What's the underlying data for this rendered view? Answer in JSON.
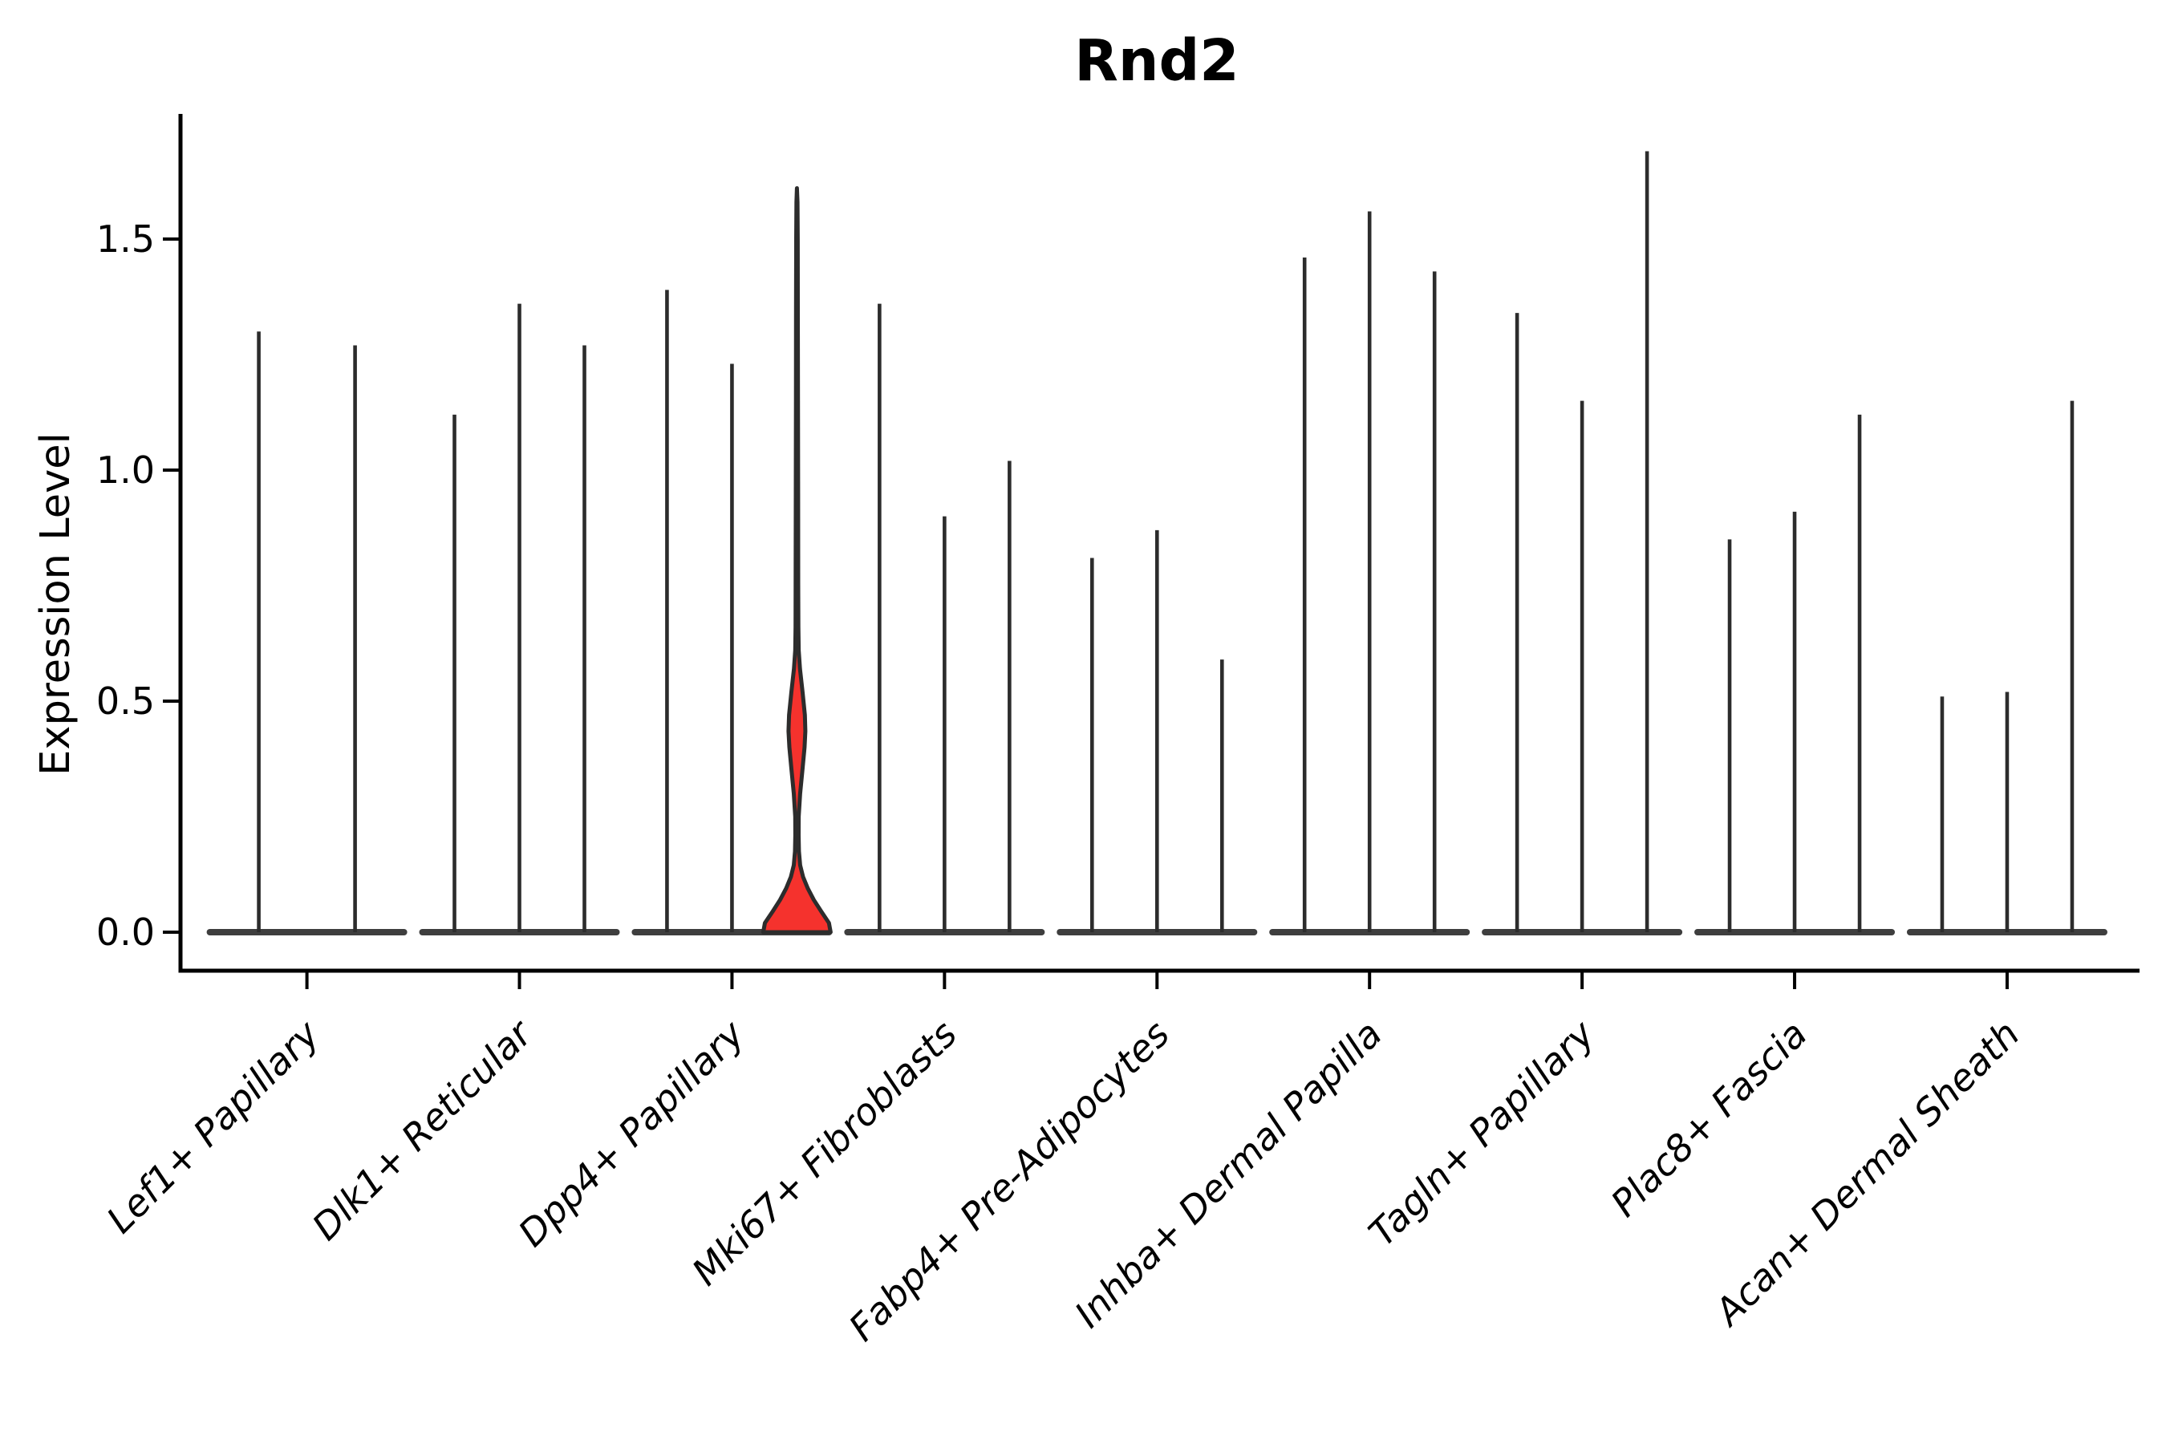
{
  "title": "Rnd2",
  "y_axis": {
    "label": "Expression Level",
    "tick_labels": [
      "0.0",
      "0.5",
      "1.0",
      "1.5"
    ]
  },
  "chart_data": {
    "type": "violin",
    "title": "Rnd2",
    "xlabel": "",
    "ylabel": "Expression Level",
    "ylim": [
      -0.085,
      1.77
    ],
    "yticks": [
      0.0,
      0.5,
      1.0,
      1.5
    ],
    "ytick_labels": [
      "0.0",
      "0.5",
      "1.0",
      "1.5"
    ],
    "grid": false,
    "legend": "none",
    "x_tick_rotation": 45,
    "categories": [
      "Lef1+ Papillary",
      "Dlk1+ Reticular",
      "Dpp4+ Papillary",
      "Mki67+ Fibroblasts",
      "Fabp4+ Pre-Adipocytes",
      "Inhba+ Dermal Papilla",
      "Tagln+ Papillary",
      "Plac8+ Fascia",
      "Acan+ Dermal Sheath"
    ],
    "description": "Violin plot of Rnd2 expression per fibroblast subtype; each category holds 2-3 narrow spike-like violins whose bases flatten at 0. The third violin of Dpp4+ Papillary is highlighted red with density bulges near 0 and ~0.44.",
    "groups": [
      {
        "category": "Lef1+ Papillary",
        "violins": [
          {
            "offset": -60,
            "max": 1.3
          },
          {
            "offset": 60,
            "max": 1.27
          }
        ]
      },
      {
        "category": "Dlk1+ Reticular",
        "violins": [
          {
            "offset": -81,
            "max": 1.12
          },
          {
            "offset": 0,
            "max": 1.36
          },
          {
            "offset": 81,
            "max": 1.27
          }
        ]
      },
      {
        "category": "Dpp4+ Papillary",
        "violins": [
          {
            "offset": -81,
            "max": 1.39
          },
          {
            "offset": 0,
            "max": 1.23
          },
          {
            "offset": 81,
            "max": 1.61,
            "highlight": true
          }
        ]
      },
      {
        "category": "Mki67+ Fibroblasts",
        "violins": [
          {
            "offset": -81,
            "max": 1.36
          },
          {
            "offset": 0,
            "max": 0.9
          },
          {
            "offset": 81,
            "max": 1.02
          }
        ]
      },
      {
        "category": "Fabp4+ Pre-Adipocytes",
        "violins": [
          {
            "offset": -81,
            "max": 0.81
          },
          {
            "offset": 0,
            "max": 0.87
          },
          {
            "offset": 81,
            "max": 0.59
          }
        ]
      },
      {
        "category": "Inhba+ Dermal Papilla",
        "violins": [
          {
            "offset": -81,
            "max": 1.46
          },
          {
            "offset": 0,
            "max": 1.56
          },
          {
            "offset": 81,
            "max": 1.43
          }
        ]
      },
      {
        "category": "Tagln+ Papillary",
        "violins": [
          {
            "offset": -81,
            "max": 1.34
          },
          {
            "offset": 0,
            "max": 1.15
          },
          {
            "offset": 81,
            "max": 1.69
          }
        ]
      },
      {
        "category": "Plac8+ Fascia",
        "violins": [
          {
            "offset": -81,
            "max": 0.85
          },
          {
            "offset": 0,
            "max": 0.91
          },
          {
            "offset": 81,
            "max": 1.12
          }
        ]
      },
      {
        "category": "Acan+ Dermal Sheath",
        "violins": [
          {
            "offset": -81,
            "max": 0.51
          },
          {
            "offset": 0,
            "max": 0.52
          },
          {
            "offset": 81,
            "max": 1.15
          }
        ]
      }
    ],
    "highlight_profile": [
      [
        0.0,
        1.0
      ],
      [
        0.02,
        0.95
      ],
      [
        0.045,
        0.72
      ],
      [
        0.07,
        0.5
      ],
      [
        0.095,
        0.32
      ],
      [
        0.12,
        0.18
      ],
      [
        0.145,
        0.095
      ],
      [
        0.175,
        0.058
      ],
      [
        0.21,
        0.048
      ],
      [
        0.25,
        0.052
      ],
      [
        0.3,
        0.095
      ],
      [
        0.35,
        0.16
      ],
      [
        0.4,
        0.225
      ],
      [
        0.435,
        0.25
      ],
      [
        0.47,
        0.235
      ],
      [
        0.52,
        0.165
      ],
      [
        0.57,
        0.09
      ],
      [
        0.61,
        0.052
      ],
      [
        0.66,
        0.042
      ],
      [
        0.75,
        0.038
      ],
      [
        0.95,
        0.034
      ],
      [
        1.15,
        0.03
      ],
      [
        1.35,
        0.026
      ],
      [
        1.5,
        0.022
      ],
      [
        1.58,
        0.015
      ],
      [
        1.61,
        0.0
      ]
    ],
    "colors": {
      "spike": "#2c2c2c",
      "baseline": "#3e3e3e",
      "highlight_fill": "#f5322d",
      "highlight_outline": "#2c2c2c",
      "axis": "#000000",
      "text": "#000000",
      "background": "#ffffff"
    }
  }
}
